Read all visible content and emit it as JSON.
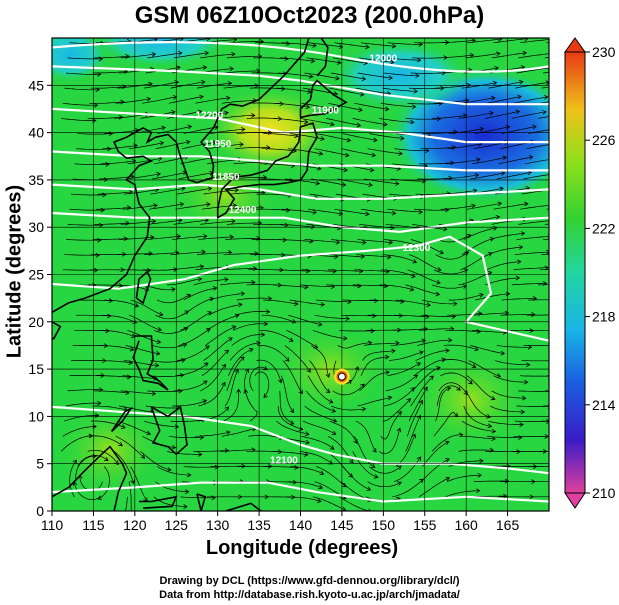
{
  "figure": {
    "title": "GSM 06Z10Oct2023 (200.0hPa)",
    "xlabel": "Longitude (degrees)",
    "ylabel": "Latitude  (degrees)",
    "credit_line1": "Drawing by DCL (https://www.gfd-dennou.org/library/dcl/)",
    "credit_line2": "Data from http://database.rish.kyoto-u.ac.jp/arch/jmadata/"
  },
  "map": {
    "lon_range": [
      110,
      170
    ],
    "lat_range": [
      0,
      50
    ],
    "lon_ticks": [
      "110",
      "115",
      "120",
      "125",
      "130",
      "135",
      "140",
      "145",
      "150",
      "155",
      "160",
      "165"
    ],
    "lat_ticks": [
      "0",
      "5",
      "10",
      "15",
      "20",
      "25",
      "30",
      "35",
      "40",
      "45"
    ],
    "contour_labels": [
      "12000",
      "11900",
      "11950",
      "11850",
      "12400",
      "12300",
      "12100",
      "12200"
    ],
    "typhoon_marker": {
      "lon": 145,
      "lat": 14.2
    },
    "colors": {
      "background": "#27d640",
      "high_yellow": "#e8e81a",
      "low_blue": "#1a39d8",
      "contour": "#ffffff",
      "streamline": "#000000"
    }
  },
  "colorbar": {
    "min": 210,
    "max": 230,
    "labels": [
      "230",
      "226",
      "222",
      "218",
      "214",
      "210"
    ],
    "stops": [
      "#e0409c",
      "#2a20c8",
      "#1f8ce0",
      "#22d6d0",
      "#32d232",
      "#9ae01a",
      "#e8c81a",
      "#e05a14"
    ]
  }
}
